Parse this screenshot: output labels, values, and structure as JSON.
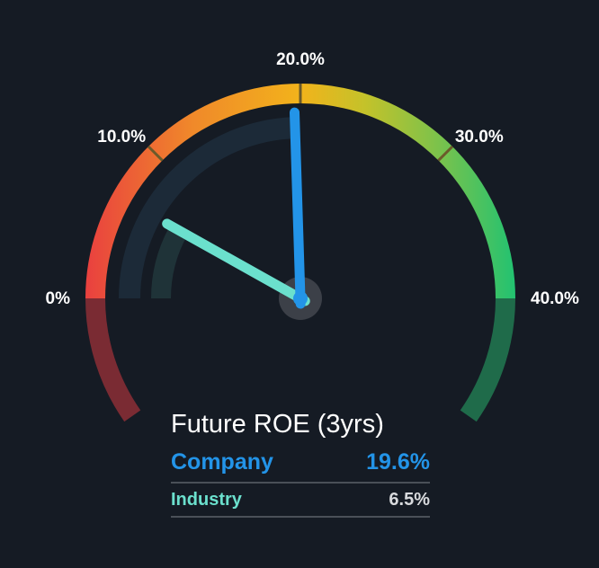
{
  "chart_data": {
    "type": "gauge",
    "title": "Future ROE (3yrs)",
    "range": [
      0,
      40
    ],
    "tick_values": [
      0,
      10,
      20,
      30,
      40
    ],
    "tick_labels": [
      "0%",
      "10.0%",
      "20.0%",
      "30.0%",
      "40.0%"
    ],
    "series": [
      {
        "name": "Company",
        "value": 19.6,
        "label": "19.6%",
        "color": "#2394e8"
      },
      {
        "name": "Industry",
        "value": 6.5,
        "label": "6.5%",
        "color": "#6be0cd"
      }
    ],
    "gradient_colors": [
      "#e9403f",
      "#f0892a",
      "#f2b31b",
      "#c4c22a",
      "#7cc24b",
      "#22c271"
    ],
    "low_zone_color": "#7a2b33",
    "high_zone_color": "#1f6b4a"
  },
  "legend": {
    "title": "Future ROE (3yrs)",
    "company": {
      "name": "Company",
      "value": "19.6%"
    },
    "industry": {
      "name": "Industry",
      "value": "6.5%"
    }
  }
}
